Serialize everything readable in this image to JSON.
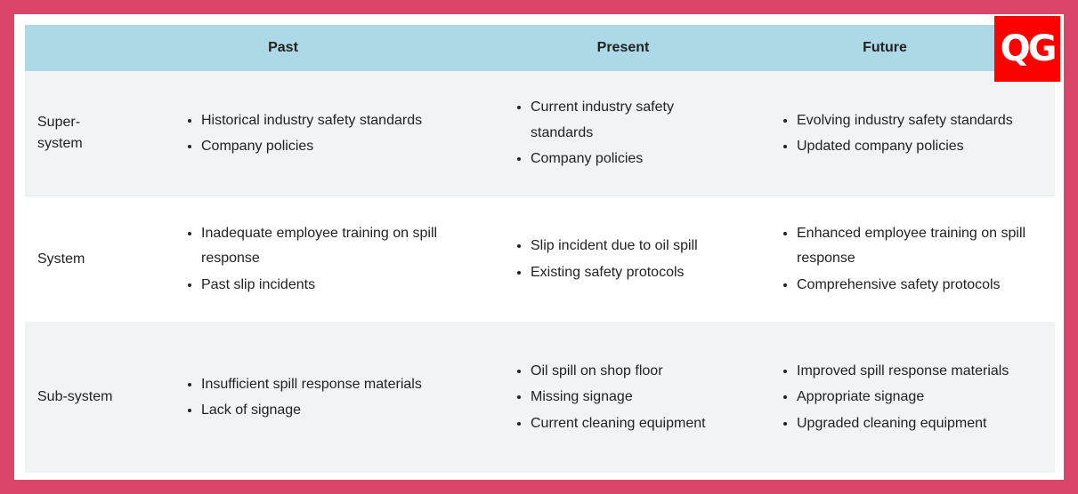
{
  "header": {
    "col_past": "Past",
    "col_present": "Present",
    "col_future": "Future"
  },
  "rows": [
    {
      "label": "Super-\nsystem",
      "past": [
        "Historical industry safety standards",
        "Company policies"
      ],
      "present": [
        "Current industry safety standards",
        "Company policies"
      ],
      "future": [
        "Evolving industry safety standards",
        "Updated company policies"
      ]
    },
    {
      "label": "System",
      "past": [
        "Inadequate employee training on spill response",
        "Past slip incidents"
      ],
      "present": [
        "Slip incident due to oil spill",
        "Existing safety protocols"
      ],
      "future": [
        "Enhanced employee training on spill response",
        "Comprehensive safety protocols"
      ]
    },
    {
      "label": "Sub-system",
      "past": [
        "Insufficient spill response materials",
        "Lack of signage"
      ],
      "present": [
        "Oil spill on shop floor",
        "Missing signage",
        "Current cleaning equipment"
      ],
      "future": [
        "Improved spill response materials",
        "Appropriate signage",
        "Upgraded cleaning equipment"
      ]
    }
  ],
  "logo": {
    "text": "QG",
    "bg": "#ff0000"
  },
  "colors": {
    "border": "#d9466a",
    "header_bg": "#add8e6",
    "alt_row_bg": "#f2f3f4"
  }
}
